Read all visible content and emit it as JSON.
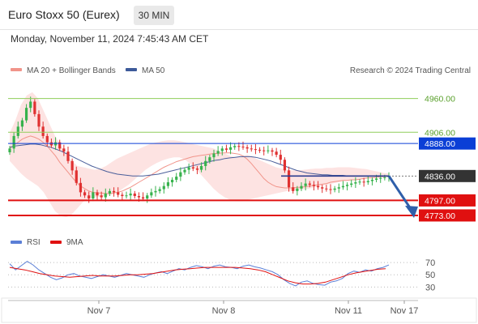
{
  "header": {
    "title": "Euro Stoxx 50 (Eurex)",
    "timeframe": "30 MIN",
    "timestamp": "Monday, November 11, 2024 7:45:43 AM CET"
  },
  "legend": {
    "ma20_bb": "MA 20 + Bollinger Bands",
    "ma50": "MA 50",
    "credit": "Research © 2024 Trading Central",
    "rsi": "RSI",
    "ma9": "9MA"
  },
  "colors": {
    "candle_up": "#37b24d",
    "candle_down": "#e03131",
    "bollinger_fill": "#fde0df",
    "ma20": "#f1948a",
    "ma50": "#4a5e9a",
    "resistance": "#0b3fd6",
    "support": "#e01010",
    "target": "#8fce5a",
    "last_price": "#333333",
    "projection_arrow": "#2f5faa"
  },
  "chart_data": [
    {
      "type": "candlestick",
      "title": "Euro Stoxx 50 (Eurex)",
      "timeframe": "30 MIN",
      "x_ticks": [
        "Nov 7",
        "Nov 8",
        "Nov 11",
        "Nov 17"
      ],
      "ylim": [
        4760,
        4975
      ],
      "price_levels": [
        {
          "label": "4960.00",
          "value": 4960,
          "kind": "target"
        },
        {
          "label": "4906.00",
          "value": 4906,
          "kind": "target"
        },
        {
          "label": "4888.00",
          "value": 4888,
          "kind": "resistance"
        },
        {
          "label": "4836.00",
          "value": 4836,
          "kind": "last"
        },
        {
          "label": "4797.00",
          "value": 4797,
          "kind": "support"
        },
        {
          "label": "4773.00",
          "value": 4773,
          "kind": "support"
        }
      ],
      "last_price": 4836,
      "projection": {
        "from": 4836,
        "to": 4773,
        "direction": "down"
      },
      "close": [
        4880,
        4900,
        4915,
        4925,
        4945,
        4955,
        4935,
        4915,
        4900,
        4890,
        4885,
        4890,
        4880,
        4875,
        4860,
        4845,
        4825,
        4810,
        4805,
        4800,
        4810,
        4805,
        4802,
        4808,
        4812,
        4810,
        4806,
        4804,
        4805,
        4808,
        4804,
        4802,
        4800,
        4805,
        4810,
        4812,
        4815,
        4820,
        4826,
        4830,
        4835,
        4842,
        4846,
        4850,
        4848,
        4846,
        4852,
        4860,
        4866,
        4872,
        4876,
        4880,
        4878,
        4882,
        4884,
        4883,
        4882,
        4880,
        4879,
        4878,
        4877,
        4876,
        4877,
        4875,
        4870,
        4862,
        4845,
        4818,
        4812,
        4816,
        4820,
        4824,
        4822,
        4820,
        4818,
        4816,
        4815,
        4814,
        4816,
        4818,
        4820,
        4822,
        4824,
        4826,
        4827,
        4826,
        4828,
        4830,
        4832,
        4833,
        4834,
        4836
      ],
      "ma20": [
        4880,
        4885,
        4890,
        4895,
        4898,
        4900,
        4898,
        4895,
        4890,
        4884,
        4876,
        4868,
        4858,
        4850,
        4842,
        4834,
        4826,
        4820,
        4816,
        4812,
        4810,
        4809,
        4809,
        4808,
        4808,
        4809,
        4810,
        4812,
        4815,
        4818,
        4822,
        4826,
        4830,
        4834,
        4838,
        4842,
        4846,
        4850,
        4853,
        4856,
        4859,
        4861,
        4863,
        4865,
        4867,
        4868,
        4869,
        4870,
        4871,
        4872,
        4872,
        4873,
        4873,
        4873,
        4872,
        4871,
        4868,
        4863,
        4856,
        4848,
        4840,
        4832,
        4826,
        4822,
        4819,
        4818,
        4817,
        4817,
        4817,
        4818,
        4818,
        4819,
        4820,
        4821,
        4822,
        4823,
        4824,
        4826,
        4827,
        4828,
        4829,
        4829,
        4830,
        4830,
        4831,
        4832,
        4833,
        4833,
        4834,
        4835,
        4835,
        4836
      ],
      "ma50": [
        4882,
        4884,
        4885,
        4886,
        4887,
        4887,
        4886,
        4884,
        4882,
        4879,
        4876,
        4872,
        4868,
        4864,
        4860,
        4856,
        4852,
        4849,
        4846,
        4843,
        4841,
        4839,
        4838,
        4837,
        4836,
        4836,
        4836,
        4837,
        4838,
        4839,
        4841,
        4843,
        4845,
        4847,
        4849,
        4851,
        4853,
        4855,
        4857,
        4859,
        4861,
        4862,
        4864,
        4865,
        4866,
        4867,
        4867,
        4867,
        4866,
        4864,
        4862,
        4860,
        4857,
        4854,
        4851,
        4848,
        4845,
        4843,
        4841,
        4840,
        4839,
        4838,
        4838,
        4837,
        4837,
        4837,
        4836,
        4836,
        4836,
        4836,
        4836,
        4836,
        4836,
        4836,
        4836
      ],
      "bb_upper": [
        4905,
        4925,
        4950,
        4965,
        4970,
        4960,
        4940,
        4920,
        4900,
        4885,
        4870,
        4860,
        4852,
        4850,
        4848,
        4846,
        4848,
        4852,
        4858,
        4864,
        4868,
        4872,
        4876,
        4880,
        4884,
        4888,
        4890,
        4892,
        4893,
        4893,
        4892,
        4890,
        4888,
        4886,
        4884,
        4882,
        4880,
        4876,
        4872,
        4868,
        4866,
        4868,
        4870,
        4866,
        4862,
        4858,
        4854,
        4850,
        4848,
        4846,
        4845,
        4845,
        4846,
        4847,
        4848,
        4848,
        4849,
        4849,
        4850,
        4850,
        4850,
        4849,
        4848,
        4847,
        4845,
        4843,
        4841,
        4840
      ],
      "bb_lower": [
        4860,
        4850,
        4840,
        4832,
        4826,
        4820,
        4810,
        4795,
        4780,
        4772,
        4770,
        4775,
        4785,
        4795,
        4800,
        4802,
        4803,
        4804,
        4806,
        4810,
        4816,
        4822,
        4830,
        4838,
        4846,
        4852,
        4857,
        4861,
        4864,
        4866,
        4866,
        4862,
        4855,
        4846,
        4836,
        4826,
        4816,
        4808,
        4802,
        4798,
        4796,
        4796,
        4798,
        4800,
        4802,
        4804,
        4806,
        4808,
        4810,
        4812,
        4813,
        4814,
        4815,
        4816,
        4818,
        4820,
        4822,
        4824,
        4826,
        4828,
        4829,
        4830,
        4831,
        4832,
        4833,
        4834,
        4835,
        4836
      ]
    },
    {
      "type": "line",
      "series": [
        {
          "name": "RSI",
          "values": [
            68,
            58,
            65,
            72,
            66,
            58,
            52,
            46,
            42,
            45,
            50,
            52,
            48,
            46,
            44,
            47,
            50,
            48,
            46,
            49,
            52,
            50,
            48,
            46,
            50,
            53,
            55,
            52,
            56,
            60,
            58,
            62,
            65,
            63,
            60,
            64,
            66,
            63,
            62,
            60,
            64,
            66,
            63,
            61,
            58,
            55,
            50,
            42,
            36,
            32,
            38,
            40,
            36,
            34,
            33,
            38,
            40,
            44,
            52,
            56,
            54,
            58,
            56,
            60,
            62,
            66
          ]
        },
        {
          "name": "9MA",
          "values": [
            62,
            60,
            58,
            55,
            52,
            50,
            48,
            47,
            46,
            47,
            48,
            49,
            48,
            48,
            48,
            49,
            50,
            50,
            51,
            52,
            54,
            56,
            58,
            59,
            60,
            61,
            62,
            62,
            62,
            62,
            62,
            61,
            60,
            58,
            55,
            50,
            45,
            40,
            37,
            35,
            35,
            36,
            38,
            42,
            46,
            50,
            53,
            55,
            57,
            59,
            60
          ]
        }
      ],
      "ylim": [
        20,
        78
      ],
      "y_ticks": [
        70,
        50,
        30
      ]
    }
  ]
}
